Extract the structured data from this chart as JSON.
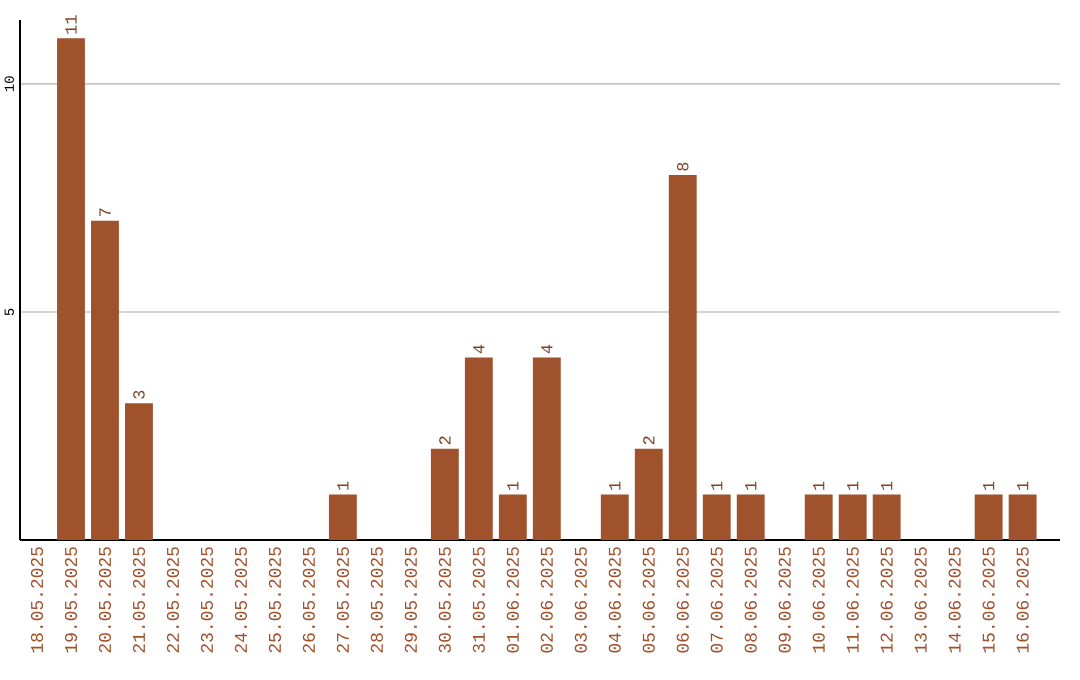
{
  "chart_data": {
    "type": "bar",
    "categories": [
      "18.05.2025",
      "19.05.2025",
      "20.05.2025",
      "21.05.2025",
      "22.05.2025",
      "23.05.2025",
      "24.05.2025",
      "25.05.2025",
      "26.05.2025",
      "27.05.2025",
      "28.05.2025",
      "29.05.2025",
      "30.05.2025",
      "31.05.2025",
      "01.06.2025",
      "02.06.2025",
      "03.06.2025",
      "04.06.2025",
      "05.06.2025",
      "06.06.2025",
      "07.06.2025",
      "08.06.2025",
      "09.06.2025",
      "10.06.2025",
      "11.06.2025",
      "12.06.2025",
      "13.06.2025",
      "14.06.2025",
      "15.06.2025",
      "16.06.2025"
    ],
    "values": [
      null,
      11,
      7,
      3,
      null,
      null,
      null,
      null,
      null,
      1,
      null,
      null,
      2,
      4,
      1,
      4,
      null,
      1,
      2,
      8,
      1,
      1,
      null,
      1,
      1,
      1,
      null,
      null,
      1,
      1
    ],
    "color": "#a0522d",
    "ylim": [
      0,
      11.4
    ],
    "yticks": [
      5,
      10
    ],
    "grid": "y",
    "data_labels": true
  }
}
